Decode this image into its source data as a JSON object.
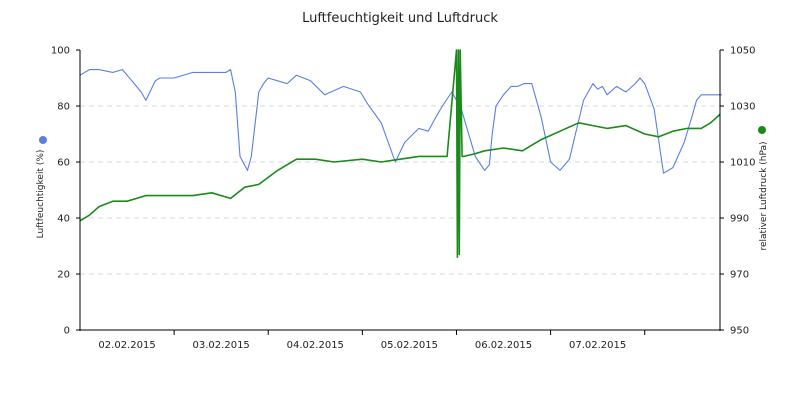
{
  "chart_data": {
    "type": "line",
    "title": "Luftfeuchtigkeit und Luftdruck",
    "x_tick_labels": [
      "02.02.2015",
      "03.02.2015",
      "04.02.2015",
      "05.02.2015",
      "06.02.2015",
      "07.02.2015"
    ],
    "x_range": [
      0,
      6.8
    ],
    "y_left": {
      "label": "Luftfeuchtigkeit (%)",
      "min": 0,
      "max": 100,
      "ticks": [
        "0",
        "20",
        "40",
        "60",
        "80",
        "100"
      ]
    },
    "y_right": {
      "label": "relativer Luftdruck (hPa)",
      "min": 950,
      "max": 1050,
      "ticks": [
        "950",
        "970",
        "990",
        "1010",
        "1030",
        "1050"
      ]
    },
    "grid": true,
    "legend_position": "side markers",
    "series": [
      {
        "name": "Luftfeuchtigkeit (%)",
        "axis": "left",
        "color": "#5b7fe0",
        "x": [
          0.0,
          0.1,
          0.2,
          0.35,
          0.45,
          0.6,
          0.65,
          0.7,
          0.8,
          0.85,
          1.0,
          1.2,
          1.4,
          1.55,
          1.6,
          1.65,
          1.7,
          1.78,
          1.82,
          1.9,
          1.95,
          2.0,
          2.1,
          2.2,
          2.3,
          2.45,
          2.6,
          2.8,
          2.98,
          3.05,
          3.2,
          3.35,
          3.45,
          3.6,
          3.7,
          3.78,
          3.85,
          3.95,
          4.05,
          4.2,
          4.3,
          4.35,
          4.38,
          4.42,
          4.5,
          4.58,
          4.65,
          4.72,
          4.8,
          4.9,
          5.0,
          5.1,
          5.2,
          5.35,
          5.45,
          5.5,
          5.55,
          5.6,
          5.7,
          5.8,
          5.9,
          5.95,
          6.0,
          6.1,
          6.2,
          6.3,
          6.42,
          6.5,
          6.55,
          6.6,
          6.65,
          6.7,
          6.75,
          6.82
        ],
        "y": [
          91,
          93,
          93,
          92,
          93,
          87,
          85,
          82,
          89,
          90,
          90,
          92,
          92,
          92,
          93,
          85,
          62,
          57,
          62,
          85,
          88,
          90,
          89,
          88,
          91,
          89,
          84,
          87,
          85,
          81,
          74,
          60,
          67,
          72,
          71,
          76,
          80,
          85,
          79,
          62,
          57,
          59,
          70,
          80,
          84,
          87,
          87,
          88,
          88,
          76,
          60,
          57,
          61,
          82,
          88,
          86,
          87,
          84,
          87,
          85,
          88,
          90,
          88,
          79,
          56,
          58,
          67,
          76,
          82,
          84,
          84,
          84,
          84,
          84
        ]
      },
      {
        "name": "relativer Luftdruck (hPa)",
        "axis": "right",
        "color": "#1a8a1a",
        "x": [
          0.0,
          0.1,
          0.2,
          0.35,
          0.5,
          0.7,
          0.85,
          1.0,
          1.2,
          1.4,
          1.5,
          1.6,
          1.75,
          1.9,
          2.1,
          2.3,
          2.5,
          2.7,
          3.0,
          3.2,
          3.4,
          3.6,
          3.9,
          4.0,
          4.01,
          4.02,
          4.03,
          4.04,
          4.06,
          4.08,
          4.2,
          4.3,
          4.5,
          4.7,
          4.9,
          5.1,
          5.3,
          5.45,
          5.6,
          5.8,
          6.0,
          6.15,
          6.3,
          6.45,
          6.6,
          6.7,
          6.8
        ],
        "y": [
          989,
          991,
          994,
          996,
          996,
          998,
          998,
          998,
          998,
          999,
          998,
          997,
          1001,
          1002,
          1007,
          1011,
          1011,
          1010,
          1011,
          1010,
          1011,
          1012,
          1012,
          1050,
          976,
          1050,
          977,
          1050,
          1012,
          1012,
          1013,
          1014,
          1015,
          1014,
          1018,
          1021,
          1024,
          1023,
          1022,
          1023,
          1020,
          1019,
          1021,
          1022,
          1022,
          1024,
          1027
        ]
      }
    ]
  }
}
